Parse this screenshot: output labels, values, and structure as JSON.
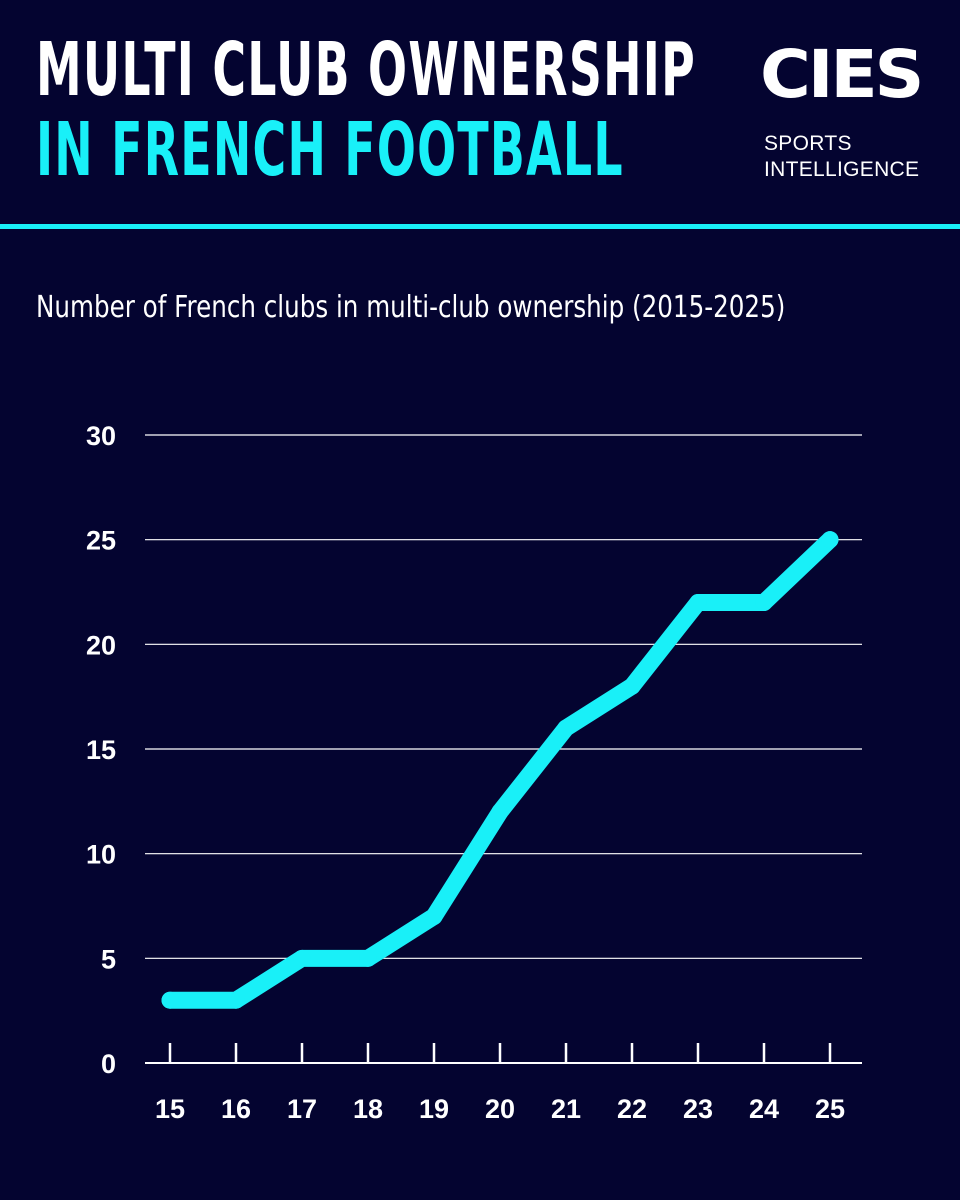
{
  "header": {
    "title_line1": "MULTI CLUB OWNERSHIP",
    "title_line2": "IN FRENCH FOOTBALL",
    "logo_text": "CIES",
    "logo_sub1": "SPORTS",
    "logo_sub2": "INTELLIGENCE"
  },
  "colors": {
    "background": "#040430",
    "accent": "#19f0f8",
    "text": "#ffffff"
  },
  "chart_data": {
    "type": "line",
    "title": "Number of French clubs in multi-club ownership (2015-2025)",
    "categories": [
      "15",
      "16",
      "17",
      "18",
      "19",
      "20",
      "21",
      "22",
      "23",
      "24",
      "25"
    ],
    "series": [
      {
        "values": [
          3,
          3,
          5,
          5,
          7,
          12,
          16,
          18,
          22,
          22,
          25
        ]
      }
    ],
    "y_ticks": [
      0,
      5,
      10,
      15,
      20,
      25,
      30
    ],
    "ylim": [
      0,
      30
    ],
    "xlabel": "",
    "ylabel": "",
    "grid": true,
    "legend": "none"
  }
}
